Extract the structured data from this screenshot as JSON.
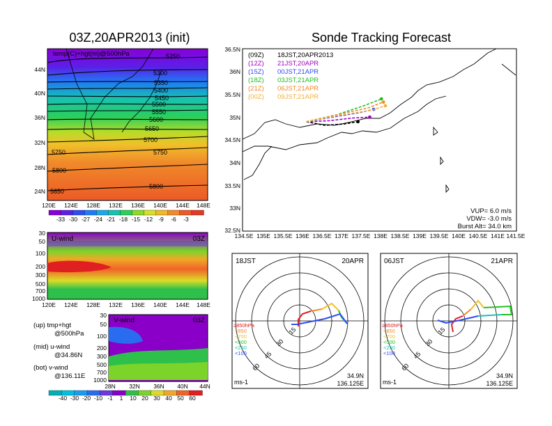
{
  "header": {
    "left_title": "03Z,20APR2013 (init)",
    "right_title": "Sonde Tracking Forecast"
  },
  "colors": {
    "temp_scale": [
      "#8a00d9",
      "#5b1fe6",
      "#2e4cf0",
      "#1f7bf5",
      "#1aa8e6",
      "#17c2b0",
      "#2ccf5a",
      "#8cd92a",
      "#d6e028",
      "#f0b82a",
      "#f08a2a",
      "#ec5a26",
      "#e03a26"
    ],
    "wind_scale": [
      "#00b0b8",
      "#00c0e0",
      "#1a9cf0",
      "#2a6cf0",
      "#6a3ae0",
      "#8b00c8",
      "#2ec04a",
      "#7cd42a",
      "#dcdc28",
      "#f0a828",
      "#f06428",
      "#e02020"
    ],
    "track_colors": {
      "09Z": "#000000",
      "12Z": "#a000c0",
      "15Z": "#2e4cf0",
      "18Z": "#20c020",
      "21Z": "#f08a2a",
      "00Z": "#f0b040"
    }
  },
  "panels": {
    "temp_map": {
      "label": "temp(C)+hgt(m)@500hPa",
      "x_ticks": [
        "120E",
        "124E",
        "128E",
        "132E",
        "136E",
        "140E",
        "144E",
        "148E"
      ],
      "y_ticks": [
        "44N",
        "40N",
        "36N",
        "32N",
        "28N",
        "24N"
      ],
      "contour_labels": [
        "5250",
        "5300",
        "5350",
        "5400",
        "5450",
        "5500",
        "5550",
        "5600",
        "5650",
        "5700",
        "5750",
        "5750",
        "5800",
        "5800",
        "5850"
      ],
      "colorbar_ticks": [
        "-33",
        "-30",
        "-27",
        "-24",
        "-21",
        "-18",
        "-15",
        "-12",
        "-9",
        "-6",
        "-3"
      ]
    },
    "u_wind": {
      "name": "U-wind",
      "time": "03Z",
      "y_ticks": [
        "30",
        "50",
        "100",
        "200",
        "300",
        "500",
        "700",
        "1000"
      ],
      "x_ticks": [
        "120E",
        "124E",
        "128E",
        "132E",
        "136E",
        "140E",
        "144E",
        "148E"
      ]
    },
    "v_wind": {
      "name": "V-wind",
      "time": "03Z",
      "y_ticks": [
        "30",
        "50",
        "100",
        "200",
        "300",
        "500",
        "700",
        "1000"
      ],
      "x_ticks": [
        "28N",
        "32N",
        "36N",
        "40N",
        "44N"
      ],
      "colorbar_ticks": [
        "-40",
        "-30",
        "-20",
        "-10",
        "-1",
        "1",
        "10",
        "20",
        "30",
        "40",
        "50",
        "60"
      ]
    },
    "legend_text": {
      "up_line1": "(up) tmp+hgt",
      "up_line2": "@500hPa",
      "mid_line1": "(mid) u-wind",
      "mid_line2": "@34.86N",
      "bot_line1": "(bot) v-wind",
      "bot_line2": "@136.11E"
    },
    "track_map": {
      "y_ticks": [
        "36.5N",
        "36N",
        "35.5N",
        "35N",
        "34.5N",
        "34N",
        "33.5N",
        "33N",
        "32.5N"
      ],
      "x_ticks": [
        "134.5E",
        "135E",
        "135.5E",
        "136E",
        "136.5E",
        "137E",
        "137.5E",
        "138E",
        "138.5E",
        "139E",
        "139.5E",
        "140E",
        "140.5E",
        "141E",
        "141.5E"
      ],
      "launches": [
        {
          "init": "(09Z)",
          "time": "18JST,20APR2013",
          "color": "#000000"
        },
        {
          "init": "(12Z)",
          "time": "21JST,20APR",
          "color": "#a000c0"
        },
        {
          "init": "(15Z)",
          "time": "00JST,21APR",
          "color": "#2e4cf0"
        },
        {
          "init": "(18Z)",
          "time": "03JST,21APR",
          "color": "#20c020"
        },
        {
          "init": "(21Z)",
          "time": "06JST,21APR",
          "color": "#f08a2a"
        },
        {
          "init": "(00Z)",
          "time": "09JST,21APR",
          "color": "#f0b040"
        }
      ],
      "params": [
        "VUP= 6.0 m/s",
        "VDW= -3.0 m/s",
        "Burst Alt= 34.0 km"
      ]
    },
    "hodo_left": {
      "time": "18JST",
      "date": "20APR",
      "ring_labels": [
        "15",
        "30",
        "45",
        "60"
      ],
      "unit": "ms-1",
      "lat": "34.9N",
      "lon": "136.125E",
      "levels": [
        "≥850hPa",
        "<850",
        "<700",
        "<500",
        "<250",
        "<100"
      ]
    },
    "hodo_right": {
      "time": "06JST",
      "date": "21APR",
      "ring_labels": [
        "15",
        "30",
        "45",
        "60"
      ],
      "unit": "ms-1",
      "lat": "34.9N",
      "lon": "136.125E",
      "levels": [
        "≥850hPa",
        "<850",
        "<700",
        "<500",
        "<250",
        "<100"
      ]
    }
  },
  "chart_data": [
    {
      "type": "heatmap",
      "title": "03Z,20APR2013 (init)",
      "subtitle": "temp(C)+hgt(m)@500hPa",
      "x": [
        "120E",
        "124E",
        "128E",
        "132E",
        "136E",
        "140E",
        "144E",
        "148E"
      ],
      "y": [
        "24N",
        "28N",
        "32N",
        "36N",
        "40N",
        "44N"
      ],
      "colorbar": [
        -33,
        -30,
        -27,
        -24,
        -21,
        -18,
        -15,
        -12,
        -9,
        -6,
        -3
      ],
      "contours_m": [
        5250,
        5300,
        5350,
        5400,
        5450,
        5500,
        5550,
        5600,
        5650,
        5700,
        5750,
        5800,
        5850
      ]
    },
    {
      "type": "heatmap",
      "title": "U-wind 03Z",
      "xlabel": "",
      "ylabel": "",
      "x": [
        "120E",
        "124E",
        "128E",
        "132E",
        "136E",
        "140E",
        "144E",
        "148E"
      ],
      "y_hPa": [
        1000,
        700,
        500,
        300,
        200,
        100,
        50,
        30
      ],
      "max_core": {
        "level_hPa": 200,
        "lon_range": [
          "120E",
          "130E"
        ]
      }
    },
    {
      "type": "heatmap",
      "title": "V-wind 03Z",
      "x": [
        "28N",
        "32N",
        "36N",
        "40N",
        "44N"
      ],
      "y_hPa": [
        1000,
        700,
        500,
        300,
        200,
        100,
        50,
        30
      ],
      "colorbar": [
        -40,
        -30,
        -20,
        -10,
        -1,
        1,
        10,
        20,
        30,
        40,
        50,
        60
      ]
    },
    {
      "type": "line",
      "title": "Sonde Tracking Forecast",
      "xlim": [
        134.5,
        141.5
      ],
      "ylim": [
        32.5,
        36.5
      ],
      "series": [
        {
          "name": "(09Z) 18JST,20APR2013",
          "x": [
            136.13,
            136.6,
            137.1,
            137.45
          ],
          "y": [
            34.9,
            34.82,
            34.85,
            34.9
          ]
        },
        {
          "name": "(12Z) 21JST,20APR",
          "x": [
            136.13,
            136.7,
            137.3,
            137.75
          ],
          "y": [
            34.9,
            34.92,
            34.98,
            35.0
          ]
        },
        {
          "name": "(15Z) 00JST,21APR",
          "x": [
            136.13,
            136.8,
            137.5,
            137.85
          ],
          "y": [
            34.9,
            35.0,
            35.1,
            35.17
          ]
        },
        {
          "name": "(18Z) 03JST,21APR",
          "x": [
            136.13,
            136.9,
            137.6,
            138.05
          ],
          "y": [
            34.9,
            35.05,
            35.25,
            35.4
          ]
        },
        {
          "name": "(21Z) 06JST,21APR",
          "x": [
            136.13,
            136.9,
            137.7,
            138.1
          ],
          "y": [
            34.9,
            35.05,
            35.2,
            35.33
          ]
        },
        {
          "name": "(00Z) 09JST,21APR",
          "x": [
            136.13,
            136.9,
            137.8,
            138.15
          ],
          "y": [
            34.9,
            35.03,
            35.15,
            35.25
          ]
        }
      ]
    }
  ]
}
